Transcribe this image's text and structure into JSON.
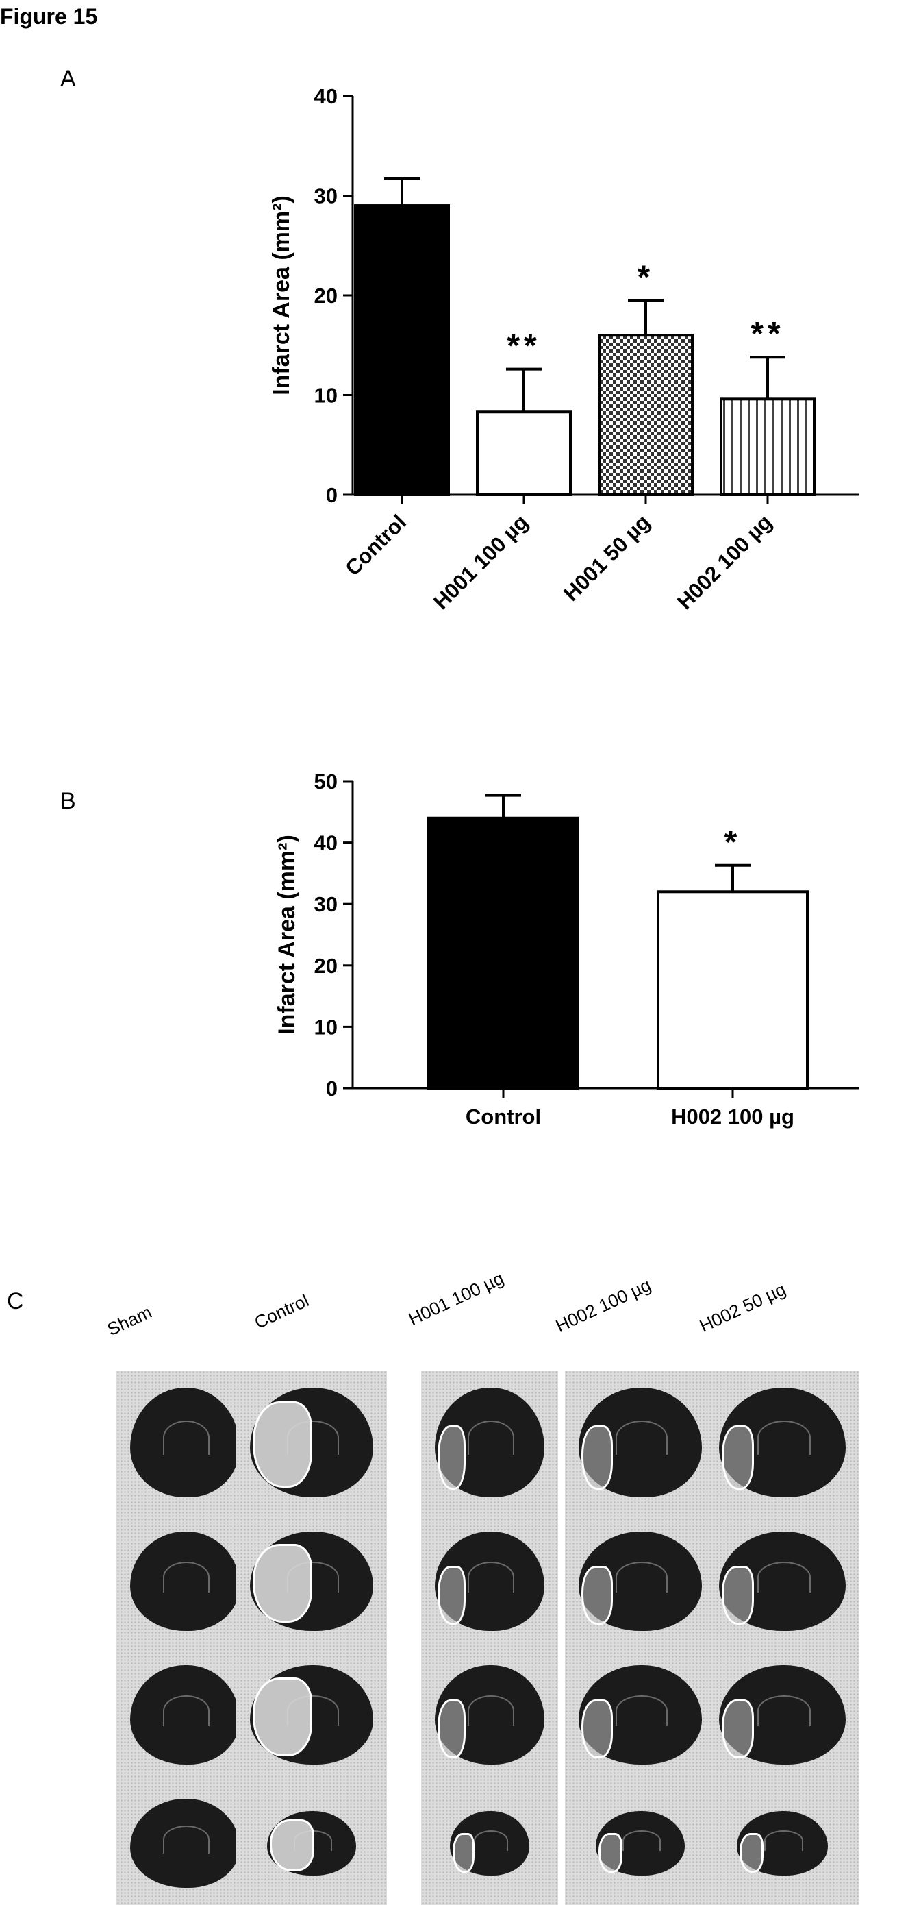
{
  "figure_title": "Figure 15",
  "panel_letters": {
    "a": "A",
    "b": "B",
    "c": "C"
  },
  "chart_data": [
    {
      "type": "bar",
      "panel": "A",
      "ylabel": "Infarct Area (mm²)",
      "ylim": [
        0,
        40
      ],
      "yticks": [
        0,
        10,
        20,
        30,
        40
      ],
      "categories": [
        "Control",
        "H001 100 µg",
        "H001 50 µg",
        "H002 100 µg"
      ],
      "values": [
        29,
        8.3,
        16,
        9.6
      ],
      "errors": [
        2.7,
        4.3,
        3.5,
        4.2
      ],
      "annotations": [
        "",
        "**",
        "*",
        "**"
      ],
      "patterns": [
        "solid-black",
        "white",
        "checkered",
        "vertical-lines"
      ]
    },
    {
      "type": "bar",
      "panel": "B",
      "ylabel": "Infarct Area (mm²)",
      "ylim": [
        0,
        50
      ],
      "yticks": [
        0,
        10,
        20,
        30,
        40,
        50
      ],
      "categories": [
        "Control",
        "H002 100 µg"
      ],
      "values": [
        44,
        32
      ],
      "errors": [
        3.7,
        4.3
      ],
      "annotations": [
        "",
        "*"
      ],
      "patterns": [
        "solid-black",
        "white"
      ]
    }
  ],
  "panel_c": {
    "columns": [
      "Sham",
      "Control",
      "H001 100 µg",
      "H002 100 µg",
      "H002 50 µg"
    ],
    "rows": 4
  }
}
